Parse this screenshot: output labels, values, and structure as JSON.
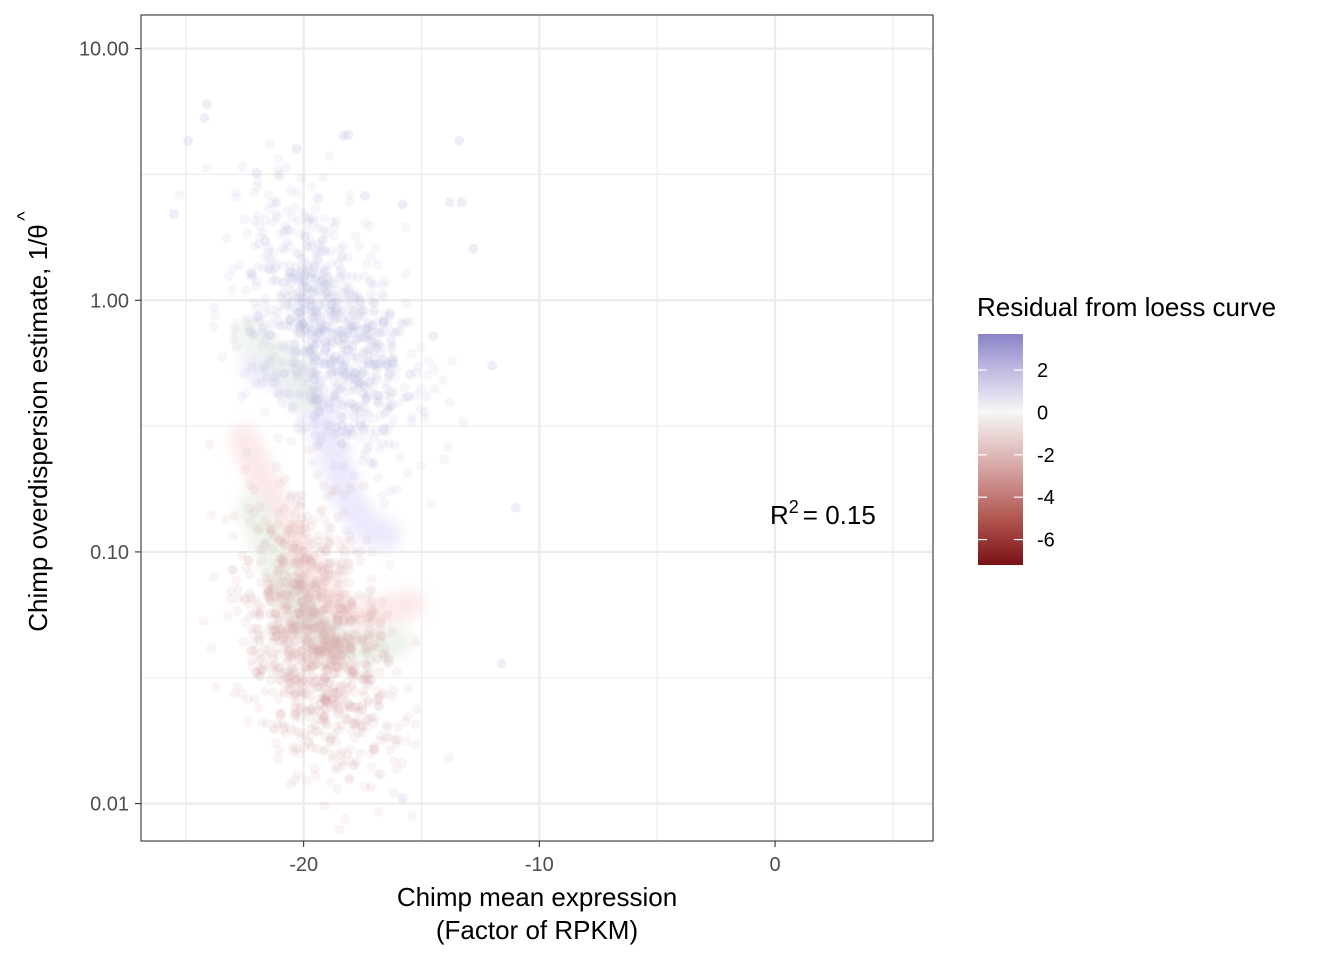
{
  "chart_data": {
    "type": "scatter",
    "xlabel_line1": "Chimp mean expression",
    "xlabel_line2": "(Factor of RPKM)",
    "ylabel": "Chimp overdispersion estimate, 1/",
    "ylabel_symbol": "θ",
    "ylabel_hat": "^",
    "y_scale": "log10",
    "xlim": [
      -26.9,
      6.7
    ],
    "ylim": [
      0.0071,
      13.6
    ],
    "x_ticks": [
      -20,
      -10,
      0
    ],
    "x_tick_labels": [
      "-20",
      "-10",
      "0"
    ],
    "y_ticks": [
      0.01,
      0.1,
      1,
      10
    ],
    "y_tick_labels": [
      "0.01",
      "0.10",
      "1.00",
      "10.00"
    ],
    "grid": true,
    "annotation": {
      "base": "R",
      "sup": "2",
      "text": "=  0.15",
      "x": -1.0,
      "y": 0.135
    },
    "legend": {
      "title": "Residual from loess curve",
      "position": "right",
      "range": [
        -7.2,
        3.7
      ],
      "breaks": [
        2,
        0,
        -2,
        -4,
        -6
      ],
      "break_labels": [
        "2",
        "0",
        "-2",
        "-4",
        "-6"
      ],
      "color_high": "#8a83c7",
      "color_mid": "#f6f6f6",
      "color_low": "#7a1216"
    },
    "clusters": [
      {
        "name": "upper",
        "x_center": -19,
        "x_sd": 1.8,
        "y_center": 0.75,
        "log_sd": 0.24,
        "color": "#b9b3e0",
        "count": 900
      },
      {
        "name": "lower",
        "x_center": -19.5,
        "x_sd": 1.6,
        "y_center": 0.045,
        "log_sd": 0.22,
        "color": "#d6a7a3",
        "count": 1100
      }
    ],
    "bands": [
      {
        "color": "#e6e3fb",
        "points": [
          [
            -22,
            0.55
          ],
          [
            -20.5,
            0.48
          ],
          [
            -19.5,
            0.38
          ],
          [
            -18.8,
            0.26
          ],
          [
            -18.2,
            0.17
          ],
          [
            -17.4,
            0.125
          ],
          [
            -16.5,
            0.117
          ]
        ]
      },
      {
        "color": "#ebf2ea",
        "points": [
          [
            -22.5,
            0.75
          ],
          [
            -21.5,
            0.62
          ],
          [
            -20.5,
            0.52
          ],
          [
            -19.8,
            0.4
          ]
        ]
      },
      {
        "color": "#fbe3e3",
        "points": [
          [
            -22.5,
            0.28
          ],
          [
            -21.8,
            0.2
          ],
          [
            -21,
            0.14
          ],
          [
            -20.2,
            0.1
          ],
          [
            -19.3,
            0.072
          ],
          [
            -18.5,
            0.06
          ],
          [
            -17.5,
            0.054
          ],
          [
            -16.5,
            0.058
          ],
          [
            -15.5,
            0.062
          ]
        ]
      },
      {
        "color": "#e8f0e6",
        "points": [
          [
            -22.2,
            0.15
          ],
          [
            -21.3,
            0.095
          ],
          [
            -20.5,
            0.068
          ],
          [
            -19.5,
            0.05
          ],
          [
            -18.4,
            0.043
          ],
          [
            -17.2,
            0.041
          ],
          [
            -16,
            0.044
          ]
        ]
      }
    ],
    "outliers": [
      {
        "x": -24.1,
        "y": 6.0
      },
      {
        "x": -24.2,
        "y": 5.3
      },
      {
        "x": -18.3,
        "y": 4.5
      },
      {
        "x": -18.1,
        "y": 4.55
      },
      {
        "x": -13.4,
        "y": 4.3
      },
      {
        "x": -20.3,
        "y": 4.0
      },
      {
        "x": -24.9,
        "y": 4.3
      },
      {
        "x": -17.4,
        "y": 2.6
      },
      {
        "x": -15.8,
        "y": 2.4
      },
      {
        "x": -13.8,
        "y": 2.45
      },
      {
        "x": -13.3,
        "y": 2.45
      },
      {
        "x": -12.8,
        "y": 1.6
      },
      {
        "x": -17.0,
        "y": 0.98
      },
      {
        "x": -14.5,
        "y": 0.72
      },
      {
        "x": -12.0,
        "y": 0.55
      },
      {
        "x": -11.0,
        "y": 0.15
      },
      {
        "x": -11.6,
        "y": 0.036
      },
      {
        "x": -15.8,
        "y": 0.0105
      },
      {
        "x": -25.5,
        "y": 2.2
      },
      {
        "x": -22.0,
        "y": 3.2
      }
    ]
  }
}
